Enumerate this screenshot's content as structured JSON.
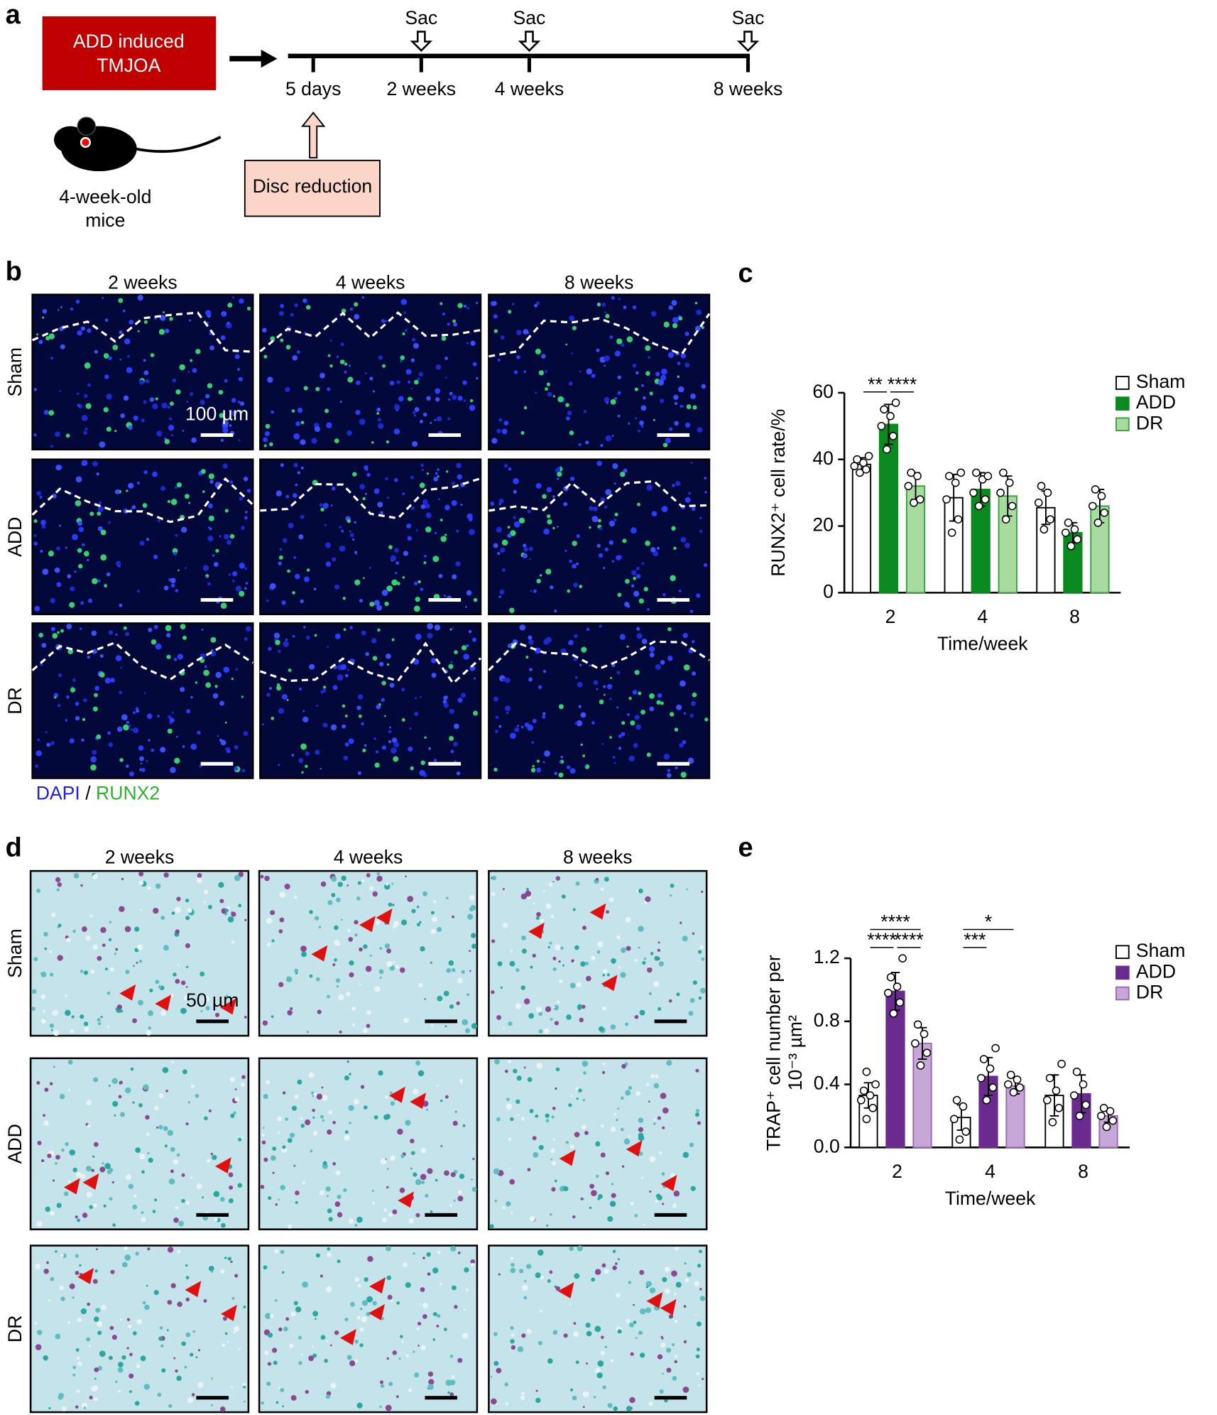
{
  "panel_a": {
    "letter": "a",
    "model_box": [
      "ADD induced",
      "TMJOA"
    ],
    "mouse_label": [
      "4-week-old",
      "mice"
    ],
    "timepoints": [
      "5 days",
      "2 weeks",
      "4 weeks",
      "8 weeks"
    ],
    "sac": [
      "Sac",
      "Sac",
      "Sac"
    ],
    "intervention": "Disc reduction"
  },
  "panel_b": {
    "letter": "b",
    "columns": [
      "2 weeks",
      "4 weeks",
      "8 weeks"
    ],
    "rows": [
      "Sham",
      "ADD",
      "DR"
    ],
    "scale_bar": "100 µm",
    "stain_legend": {
      "dapi": "DAPI",
      "separator": "/",
      "runx2": "RUNX2"
    }
  },
  "panel_d": {
    "letter": "d",
    "columns": [
      "2 weeks",
      "4 weeks",
      "8 weeks"
    ],
    "rows": [
      "Sham",
      "ADD",
      "DR"
    ],
    "scale_bar": "50 µm"
  },
  "chart_data": [
    {
      "type": "bar",
      "letter": "c",
      "ylabel": [
        "RUNX2⁺ cell rate/%"
      ],
      "xlabel": "Time/week",
      "categories": [
        "2",
        "4",
        "8"
      ],
      "ylim": [
        0,
        60
      ],
      "yticks": [
        0,
        20,
        40,
        60
      ],
      "series": [
        {
          "name": "Sham",
          "color": "#ffffff",
          "edge": "#000000",
          "values": [
            38.5,
            28.5,
            25.5
          ],
          "errors": [
            2,
            7,
            5
          ],
          "points": [
            [
              36,
              37,
              38,
              39,
              40,
              41
            ],
            [
              18,
              22,
              28,
              33,
              35,
              36
            ],
            [
              19,
              22,
              27,
              30,
              32
            ]
          ]
        },
        {
          "name": "ADD",
          "color": "#0a8a1e",
          "edge": "#0a8a1e",
          "values": [
            50.5,
            31,
            18
          ],
          "errors": [
            6,
            5,
            3
          ],
          "points": [
            [
              43,
              47,
              50,
              53,
              55,
              57
            ],
            [
              26,
              28,
              30,
              34,
              36,
              35
            ],
            [
              14,
              16,
              18,
              19,
              21
            ]
          ]
        },
        {
          "name": "DR",
          "color": "#a8dba0",
          "edge": "#3aa040",
          "values": [
            32,
            29,
            26
          ],
          "errors": [
            4,
            6,
            5
          ],
          "points": [
            [
              27,
              28,
              32,
              35,
              36
            ],
            [
              22,
              26,
              30,
              33,
              36
            ],
            [
              21,
              24,
              26,
              29,
              31
            ]
          ]
        }
      ],
      "significance": [
        {
          "label": "**",
          "category": 0,
          "from": 0,
          "to": 1
        },
        {
          "label": "****",
          "category": 0,
          "from": 1,
          "to": 2
        }
      ]
    },
    {
      "type": "bar",
      "letter": "e",
      "ylabel": [
        "TRAP⁺ cell number per",
        "10⁻³ µm²"
      ],
      "xlabel": "Time/week",
      "categories": [
        "2",
        "4",
        "8"
      ],
      "ylim": [
        0,
        1.2
      ],
      "yticks": [
        {
          "value": 0,
          "label": "0.0"
        },
        0.4,
        0.8,
        1.2
      ],
      "series": [
        {
          "name": "Sham",
          "color": "#ffffff",
          "edge": "#000000",
          "values": [
            0.33,
            0.19,
            0.33
          ],
          "errors": [
            0.08,
            0.08,
            0.13
          ],
          "points": [
            [
              0.18,
              0.25,
              0.3,
              0.33,
              0.36,
              0.4,
              0.48
            ],
            [
              0.05,
              0.1,
              0.18,
              0.26,
              0.3
            ],
            [
              0.16,
              0.25,
              0.3,
              0.36,
              0.44,
              0.53
            ]
          ]
        },
        {
          "name": "ADD",
          "color": "#6a2a8e",
          "edge": "#6a2a8e",
          "values": [
            0.99,
            0.45,
            0.34
          ],
          "errors": [
            0.12,
            0.12,
            0.12
          ],
          "points": [
            [
              0.85,
              0.92,
              0.98,
              1.02,
              1.08,
              1.2
            ],
            [
              0.3,
              0.38,
              0.44,
              0.5,
              0.56,
              0.63
            ],
            [
              0.2,
              0.27,
              0.33,
              0.4,
              0.48
            ]
          ]
        },
        {
          "name": "DR",
          "color": "#c7a6d8",
          "edge": "#9a6ab8",
          "values": [
            0.66,
            0.39,
            0.2
          ],
          "errors": [
            0.1,
            0.05,
            0.04
          ],
          "points": [
            [
              0.52,
              0.6,
              0.66,
              0.72,
              0.78
            ],
            [
              0.35,
              0.38,
              0.4,
              0.43,
              0.46
            ],
            [
              0.13,
              0.17,
              0.2,
              0.23,
              0.25
            ]
          ]
        }
      ],
      "significance": [
        {
          "label": "****",
          "category": 0,
          "from": 0,
          "to": 2
        },
        {
          "label": "****",
          "category": 0,
          "from": 0,
          "to": 1
        },
        {
          "label": "****",
          "category": 0,
          "from": 1,
          "to": 2
        },
        {
          "label": "***",
          "category": 1,
          "from": 0,
          "to": 1
        },
        {
          "label": "*",
          "category": 1,
          "from": 0,
          "to": 2
        }
      ]
    }
  ]
}
